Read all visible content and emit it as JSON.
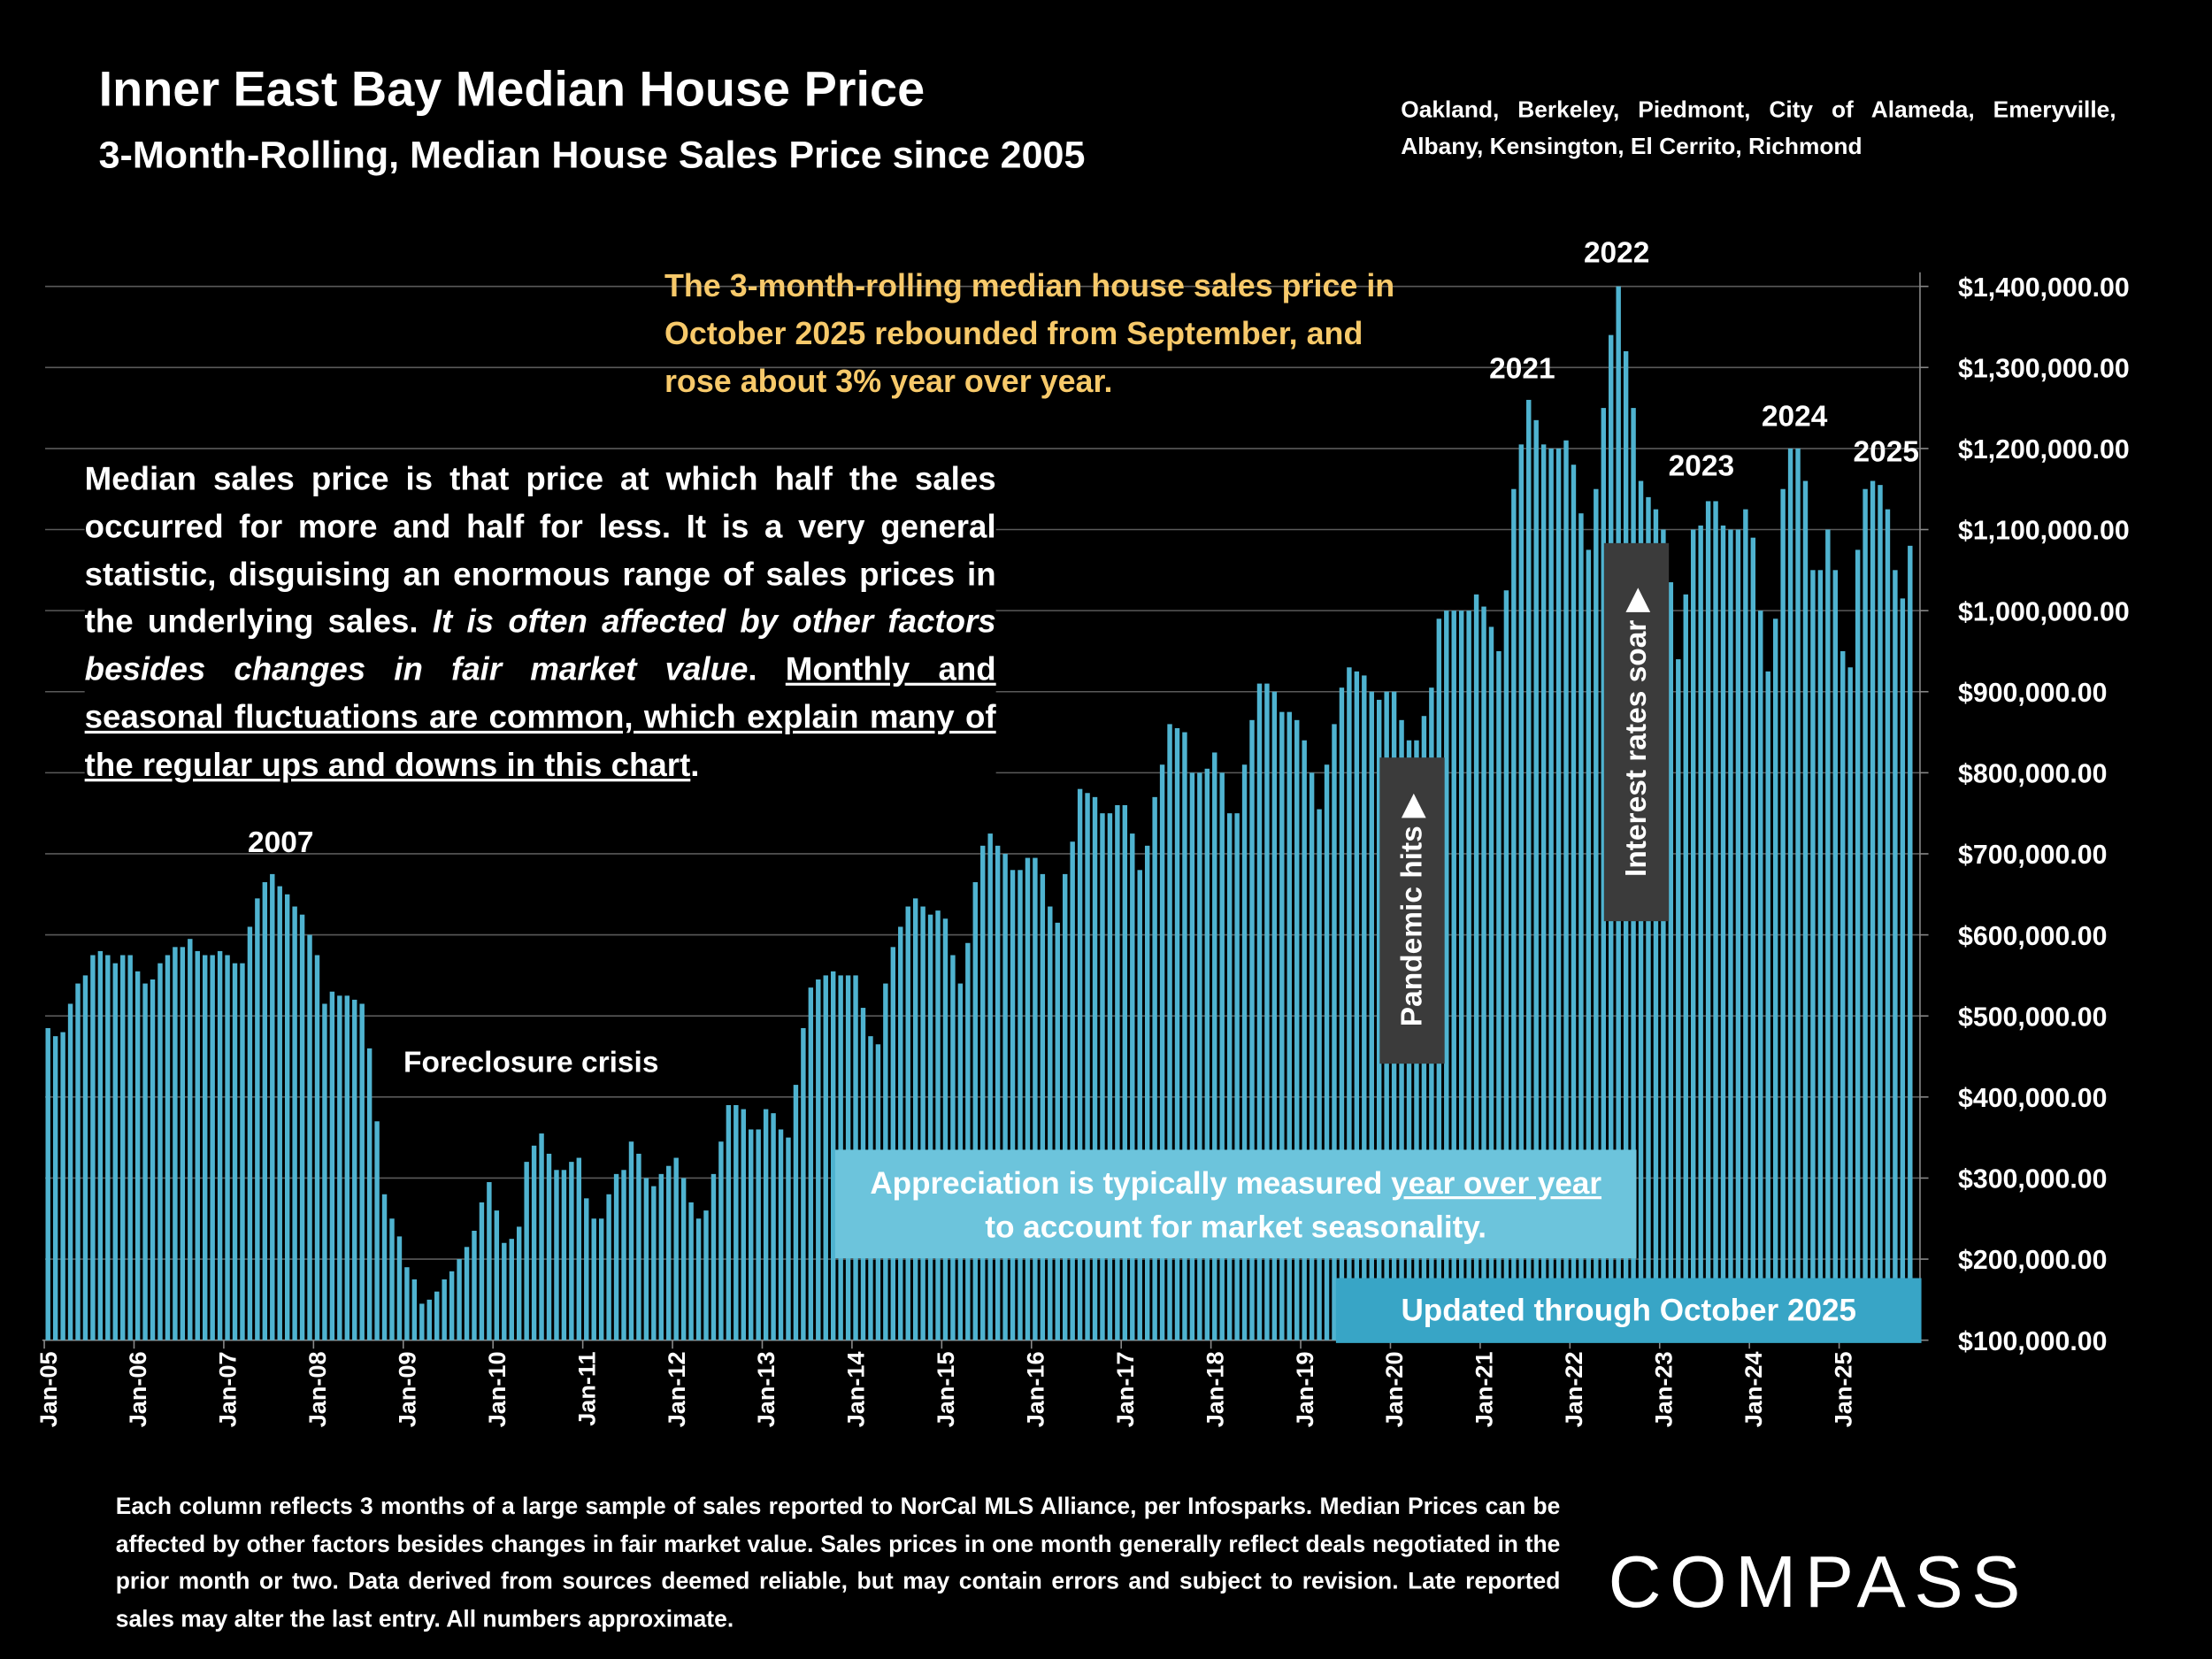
{
  "chart_data": {
    "type": "bar",
    "title": "Inner East Bay Median House Price",
    "subtitle": "3-Month-Rolling, Median House Sales Price since 2005",
    "regions": "Oakland, Berkeley, Piedmont, City of Alameda, Emeryville, Albany, Kensington, El Cerrito, Richmond",
    "note": "The 3-month-rolling median house sales price in October 2025 rebounded from September, and rose about 3% year over year.",
    "description": [
      {
        "text": "Median sales price is that price at which half the sales occurred for more and half for less. It is a very general statistic, disguising an enormous range of sales prices in the underlying sales. ",
        "style": "normal"
      },
      {
        "text": "It is often affected by other factors besides changes in fair market value",
        "style": "italic"
      },
      {
        "text": ". ",
        "style": "normal"
      },
      {
        "text": "Monthly and seasonal fluctuations are common, which explain many of the regular ups and downs in this chart",
        "style": "underline"
      },
      {
        "text": ".",
        "style": "normal"
      }
    ],
    "year_labels": [
      "2007",
      "2021",
      "2022",
      "2023",
      "2024",
      "2025"
    ],
    "crisis_label": "Foreclosure crisis",
    "pandemic_label": "Pandemic hits ▶",
    "rates_label": "Interest rates soar ▶",
    "appreciation": [
      {
        "text": "Appreciation is typically measured ",
        "style": "normal"
      },
      {
        "text": "year over year",
        "style": "underline"
      },
      {
        "text": " to account for market seasonality.",
        "style": "normal"
      }
    ],
    "updated": "Updated through October 2025",
    "color": "#4fb3d0",
    "grid": true,
    "ylim": [
      100000,
      1400000
    ],
    "yticks": [
      {
        "value": 100000,
        "label": "$100,000.00"
      },
      {
        "value": 200000,
        "label": "$200,000.00"
      },
      {
        "value": 300000,
        "label": "$300,000.00"
      },
      {
        "value": 400000,
        "label": "$400,000.00"
      },
      {
        "value": 500000,
        "label": "$500,000.00"
      },
      {
        "value": 600000,
        "label": "$600,000.00"
      },
      {
        "value": 700000,
        "label": "$700,000.00"
      },
      {
        "value": 800000,
        "label": "$800,000.00"
      },
      {
        "value": 900000,
        "label": "$900,000.00"
      },
      {
        "value": 1000000,
        "label": "$1,000,000.00"
      },
      {
        "value": 1100000,
        "label": "$1,100,000.00"
      },
      {
        "value": 1200000,
        "label": "$1,200,000.00"
      },
      {
        "value": 1300000,
        "label": "$1,300,000.00"
      },
      {
        "value": 1400000,
        "label": "$1,400,000.00"
      }
    ],
    "categories": [
      "Jan-05",
      null,
      null,
      null,
      null,
      null,
      null,
      null,
      null,
      null,
      null,
      null,
      "Jan-06",
      null,
      null,
      null,
      null,
      null,
      null,
      null,
      null,
      null,
      null,
      null,
      "Jan-07",
      null,
      null,
      null,
      null,
      null,
      null,
      null,
      null,
      null,
      null,
      null,
      "Jan-08",
      null,
      null,
      null,
      null,
      null,
      null,
      null,
      null,
      null,
      null,
      null,
      "Jan-09",
      null,
      null,
      null,
      null,
      null,
      null,
      null,
      null,
      null,
      null,
      null,
      "Jan-10",
      null,
      null,
      null,
      null,
      null,
      null,
      null,
      null,
      null,
      null,
      null,
      "Jan-11",
      null,
      null,
      null,
      null,
      null,
      null,
      null,
      null,
      null,
      null,
      null,
      "Jan-12",
      null,
      null,
      null,
      null,
      null,
      null,
      null,
      null,
      null,
      null,
      null,
      "Jan-13",
      null,
      null,
      null,
      null,
      null,
      null,
      null,
      null,
      null,
      null,
      null,
      "Jan-14",
      null,
      null,
      null,
      null,
      null,
      null,
      null,
      null,
      null,
      null,
      null,
      "Jan-15",
      null,
      null,
      null,
      null,
      null,
      null,
      null,
      null,
      null,
      null,
      null,
      "Jan-16",
      null,
      null,
      null,
      null,
      null,
      null,
      null,
      null,
      null,
      null,
      null,
      "Jan-17",
      null,
      null,
      null,
      null,
      null,
      null,
      null,
      null,
      null,
      null,
      null,
      "Jan-18",
      null,
      null,
      null,
      null,
      null,
      null,
      null,
      null,
      null,
      null,
      null,
      "Jan-19",
      null,
      null,
      null,
      null,
      null,
      null,
      null,
      null,
      null,
      null,
      null,
      "Jan-20",
      null,
      null,
      null,
      null,
      null,
      null,
      null,
      null,
      null,
      null,
      null,
      "Jan-21",
      null,
      null,
      null,
      null,
      null,
      null,
      null,
      null,
      null,
      null,
      null,
      "Jan-22",
      null,
      null,
      null,
      null,
      null,
      null,
      null,
      null,
      null,
      null,
      null,
      "Jan-23",
      null,
      null,
      null,
      null,
      null,
      null,
      null,
      null,
      null,
      null,
      null,
      "Jan-24",
      null,
      null,
      null,
      null,
      null,
      null,
      null,
      null,
      null,
      null,
      null,
      "Jan-25",
      null,
      null,
      null,
      null,
      null,
      null,
      null,
      null,
      null
    ],
    "values": [
      485000,
      475000,
      480000,
      515000,
      540000,
      550000,
      575000,
      580000,
      575000,
      565000,
      575000,
      575000,
      555000,
      540000,
      545000,
      565000,
      575000,
      585000,
      585000,
      595000,
      580000,
      575000,
      575000,
      580000,
      575000,
      565000,
      565000,
      610000,
      645000,
      665000,
      675000,
      660000,
      650000,
      635000,
      625000,
      600000,
      575000,
      515000,
      530000,
      525000,
      525000,
      520000,
      515000,
      460000,
      370000,
      280000,
      250000,
      228000,
      190000,
      175000,
      145000,
      150000,
      160000,
      175000,
      185000,
      200000,
      215000,
      235000,
      270000,
      295000,
      260000,
      220000,
      225000,
      240000,
      320000,
      340000,
      355000,
      330000,
      310000,
      310000,
      320000,
      325000,
      275000,
      250000,
      250000,
      280000,
      305000,
      310000,
      345000,
      330000,
      300000,
      290000,
      305000,
      315000,
      325000,
      300000,
      270000,
      250000,
      260000,
      305000,
      345000,
      390000,
      390000,
      385000,
      360000,
      360000,
      385000,
      380000,
      360000,
      350000,
      415000,
      485000,
      535000,
      545000,
      550000,
      555000,
      550000,
      550000,
      550000,
      510000,
      475000,
      465000,
      540000,
      585000,
      610000,
      635000,
      645000,
      635000,
      625000,
      630000,
      620000,
      575000,
      540000,
      590000,
      665000,
      710000,
      725000,
      710000,
      700000,
      680000,
      680000,
      695000,
      695000,
      675000,
      635000,
      615000,
      675000,
      715000,
      780000,
      775000,
      770000,
      750000,
      750000,
      760000,
      760000,
      725000,
      680000,
      710000,
      770000,
      810000,
      860000,
      855000,
      850000,
      800000,
      800000,
      805000,
      825000,
      800000,
      750000,
      750000,
      810000,
      865000,
      910000,
      910000,
      900000,
      875000,
      875000,
      865000,
      840000,
      800000,
      755000,
      810000,
      860000,
      905000,
      930000,
      925000,
      920000,
      900000,
      890000,
      900000,
      900000,
      865000,
      840000,
      840000,
      870000,
      905000,
      990000,
      1000000,
      1000000,
      1000000,
      1000000,
      1020000,
      1005000,
      980000,
      950000,
      1025000,
      1150000,
      1205000,
      1260000,
      1235000,
      1205000,
      1200000,
      1200000,
      1210000,
      1180000,
      1120000,
      1075000,
      1150000,
      1250000,
      1340000,
      1400000,
      1320000,
      1250000,
      1160000,
      1140000,
      1125000,
      1100000,
      1035000,
      940000,
      1020000,
      1100000,
      1105000,
      1135000,
      1135000,
      1105000,
      1100000,
      1100000,
      1125000,
      1090000,
      1000000,
      925000,
      990000,
      1150000,
      1200000,
      1200000,
      1160000,
      1050000,
      1050000,
      1100000,
      1050000,
      950000,
      930000,
      1075000,
      1150000,
      1160000,
      1155000,
      1125000,
      1050000,
      1015000,
      1080000
    ]
  },
  "footer": "Each column reflects 3 months of a large sample of sales reported to NorCal MLS Alliance, per Infosparks. Median Prices can be affected by other factors besides changes in fair market value. Sales prices in one month generally reflect deals negotiated in the prior month or two. Data derived from sources deemed reliable, but may contain errors and subject to revision. Late reported sales may alter the last entry. All numbers approximate.",
  "brand": "COMPASS"
}
